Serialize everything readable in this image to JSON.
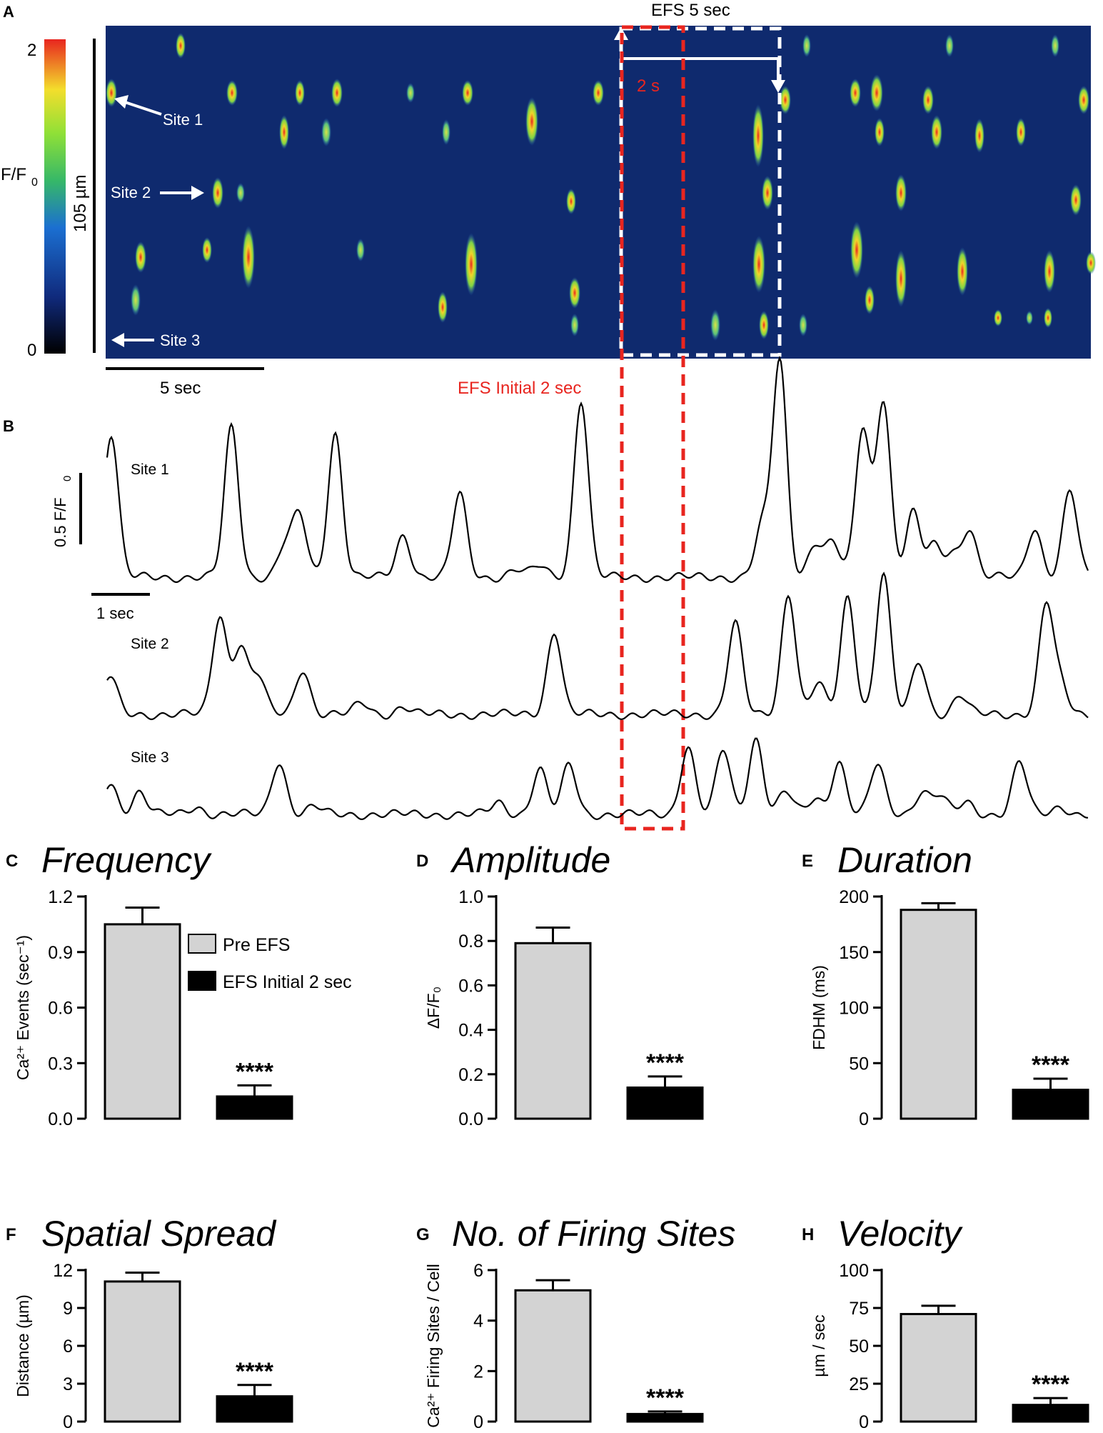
{
  "panel_a": {
    "letter": "A",
    "colorbar": {
      "max_label": "2",
      "min_label": "0",
      "quantity": "F/F",
      "sub": "0"
    },
    "scale_space": "105 µm",
    "scale_time": "5 sec",
    "efs_label": "EFS 5 sec",
    "interval_label": "2 s",
    "site_labels": [
      "Site 1",
      "Site 2",
      "Site 3"
    ],
    "efs_initial_label": "EFS Initial 2 sec",
    "colors": {
      "efs_box": "#ffffff",
      "initial_box": "#e8251f",
      "background": "#0f2a6e"
    }
  },
  "panel_b": {
    "letter": "B",
    "amplitude_scale": "0.5 F/F",
    "amplitude_sub": "0",
    "time_scale": "1 sec",
    "traces": [
      {
        "name": "Site 1",
        "peaks": [
          [
            0.07,
            1.9
          ],
          [
            2.1,
            1.98
          ],
          [
            3.0,
            0.4
          ],
          [
            3.25,
            0.8
          ],
          [
            3.85,
            1.9
          ],
          [
            5.0,
            0.55
          ],
          [
            5.95,
            1.1
          ],
          [
            6.9,
            0.1
          ],
          [
            7.3,
            0.15
          ],
          [
            8.0,
            2.35
          ],
          [
            11.05,
            0.65
          ],
          [
            11.35,
            2.85
          ],
          [
            11.95,
            0.45
          ],
          [
            12.25,
            0.45
          ],
          [
            12.75,
            1.95
          ],
          [
            13.1,
            2.35
          ],
          [
            13.6,
            0.85
          ],
          [
            13.95,
            0.4
          ],
          [
            14.25,
            0.3
          ],
          [
            14.55,
            0.65
          ],
          [
            15.65,
            0.65
          ],
          [
            16.25,
            1.15
          ]
        ]
      },
      {
        "name": "Site 2",
        "peaks": [
          [
            0.05,
            0.5
          ],
          [
            1.9,
            1.3
          ],
          [
            2.25,
            0.9
          ],
          [
            2.55,
            0.5
          ],
          [
            3.3,
            0.6
          ],
          [
            4.3,
            0.15
          ],
          [
            5.0,
            0.1
          ],
          [
            7.55,
            1.1
          ],
          [
            10.6,
            1.2
          ],
          [
            11.5,
            1.6
          ],
          [
            12.0,
            0.4
          ],
          [
            12.5,
            1.55
          ],
          [
            13.1,
            1.85
          ],
          [
            13.7,
            0.7
          ],
          [
            14.4,
            0.25
          ],
          [
            15.85,
            1.45
          ],
          [
            16.1,
            0.35
          ]
        ]
      },
      {
        "name": "Site 3",
        "peaks": [
          [
            0.05,
            0.4
          ],
          [
            0.55,
            0.3
          ],
          [
            1.5,
            0.1
          ],
          [
            2.9,
            0.7
          ],
          [
            3.5,
            0.1
          ],
          [
            6.6,
            0.15
          ],
          [
            7.3,
            0.6
          ],
          [
            7.8,
            0.65
          ],
          [
            9.8,
            0.9
          ],
          [
            10.4,
            0.85
          ],
          [
            10.95,
            1.0
          ],
          [
            11.45,
            0.3
          ],
          [
            11.95,
            0.2
          ],
          [
            12.35,
            0.7
          ],
          [
            13.0,
            0.65
          ],
          [
            13.75,
            0.3
          ],
          [
            14.05,
            0.25
          ],
          [
            14.5,
            0.15
          ],
          [
            15.4,
            0.7
          ],
          [
            16.1,
            0.1
          ]
        ]
      }
    ]
  },
  "legend": {
    "pre": "Pre EFS",
    "post": "EFS Initial 2 sec",
    "pre_color": "#d3d3d3",
    "post_color": "#000000"
  },
  "chart_data": [
    {
      "type": "bar",
      "letter": "C",
      "title": "Frequency",
      "ylabel": "Ca²⁺ Events (sec⁻¹)",
      "categories": [
        "Pre EFS",
        "EFS Initial 2 sec"
      ],
      "values": [
        1.05,
        0.12
      ],
      "errors": [
        0.09,
        0.06
      ],
      "ylim": [
        0,
        1.2
      ],
      "yticks": [
        "0.0",
        "0.3",
        "0.6",
        "0.9",
        "1.2"
      ],
      "significance": "****"
    },
    {
      "type": "bar",
      "letter": "D",
      "title": "Amplitude",
      "ylabel": "ΔF/F₀",
      "categories": [
        "Pre EFS",
        "EFS Initial 2 sec"
      ],
      "values": [
        0.79,
        0.14
      ],
      "errors": [
        0.07,
        0.05
      ],
      "ylim": [
        0,
        1.0
      ],
      "yticks": [
        "0.0",
        "0.2",
        "0.4",
        "0.6",
        "0.8",
        "1.0"
      ],
      "significance": "****"
    },
    {
      "type": "bar",
      "letter": "E",
      "title": "Duration",
      "ylabel": "FDHM (ms)",
      "categories": [
        "Pre EFS",
        "EFS Initial 2 sec"
      ],
      "values": [
        188,
        26
      ],
      "errors": [
        6,
        10
      ],
      "ylim": [
        0,
        200
      ],
      "yticks": [
        "0",
        "50",
        "100",
        "150",
        "200"
      ],
      "significance": "****"
    },
    {
      "type": "bar",
      "letter": "F",
      "title": "Spatial Spread",
      "ylabel": "Distance (µm)",
      "categories": [
        "Pre EFS",
        "EFS Initial 2 sec"
      ],
      "values": [
        11.1,
        2.0
      ],
      "errors": [
        0.7,
        0.9
      ],
      "ylim": [
        0,
        12
      ],
      "yticks": [
        "0",
        "3",
        "6",
        "9",
        "12"
      ],
      "significance": "****"
    },
    {
      "type": "bar",
      "letter": "G",
      "title": "No. of Firing Sites",
      "ylabel": "Ca²⁺ Firing Sites / Cell",
      "categories": [
        "Pre EFS",
        "EFS Initial 2 sec"
      ],
      "values": [
        5.2,
        0.3
      ],
      "errors": [
        0.4,
        0.1
      ],
      "ylim": [
        0,
        6
      ],
      "yticks": [
        "0",
        "2",
        "4",
        "6"
      ],
      "significance": "****"
    },
    {
      "type": "bar",
      "letter": "H",
      "title": "Velocity",
      "ylabel": "µm / sec",
      "categories": [
        "Pre EFS",
        "EFS Initial 2 sec"
      ],
      "values": [
        71,
        11
      ],
      "errors": [
        5.5,
        4.5
      ],
      "ylim": [
        0,
        100
      ],
      "yticks": [
        "0",
        "25",
        "50",
        "75",
        "100"
      ],
      "significance": "****"
    }
  ]
}
